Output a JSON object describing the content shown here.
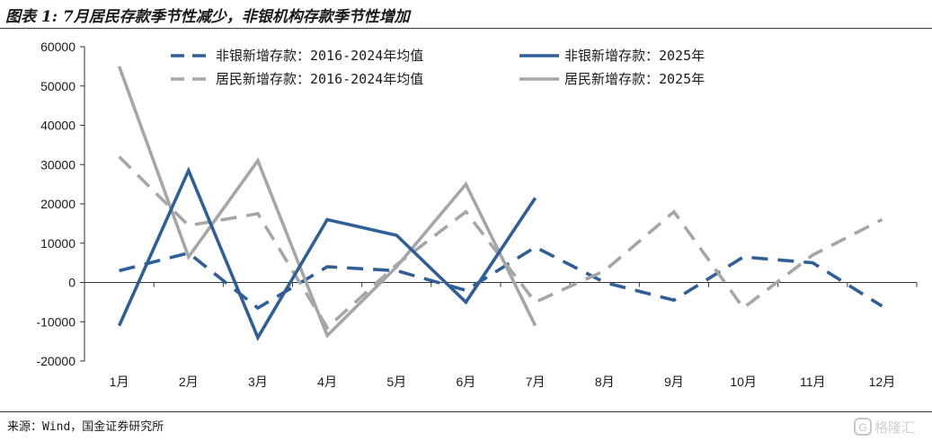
{
  "title": "图表 1: 7月居民存款季节性减少，非银机构存款季节性增加",
  "source": "来源：Wind，国金证券研究所",
  "watermark": "格隆汇",
  "chart_data": {
    "type": "line",
    "categories": [
      "1月",
      "2月",
      "3月",
      "4月",
      "5月",
      "6月",
      "7月",
      "8月",
      "9月",
      "10月",
      "11月",
      "12月"
    ],
    "ylim": [
      -20000,
      60000
    ],
    "yticks": [
      -20000,
      -10000,
      0,
      10000,
      20000,
      30000,
      40000,
      50000,
      60000
    ],
    "grid": false,
    "legend_position": "top",
    "series": [
      {
        "name": "非银新增存款：2016-2024年均值",
        "color": "#2f5f96",
        "dash": true,
        "values": [
          3000,
          7500,
          -6500,
          4000,
          3000,
          -2000,
          9000,
          0,
          -4500,
          6500,
          5000,
          -6000
        ]
      },
      {
        "name": "非银新增存款：2025年",
        "color": "#2f5f96",
        "dash": false,
        "values": [
          -11000,
          28500,
          -14000,
          16000,
          12000,
          -5000,
          21500,
          null,
          null,
          null,
          null,
          null
        ]
      },
      {
        "name": "居民新增存款：2016-2024年均值",
        "color": "#a6a6a6",
        "dash": true,
        "values": [
          32000,
          14500,
          17500,
          -11500,
          4500,
          18000,
          -5000,
          3000,
          18000,
          -6500,
          7000,
          16000
        ]
      },
      {
        "name": "居民新增存款：2025年",
        "color": "#a6a6a6",
        "dash": false,
        "values": [
          55000,
          6500,
          31000,
          -13500,
          4000,
          25000,
          -11000,
          null,
          null,
          null,
          null,
          null
        ]
      }
    ]
  }
}
